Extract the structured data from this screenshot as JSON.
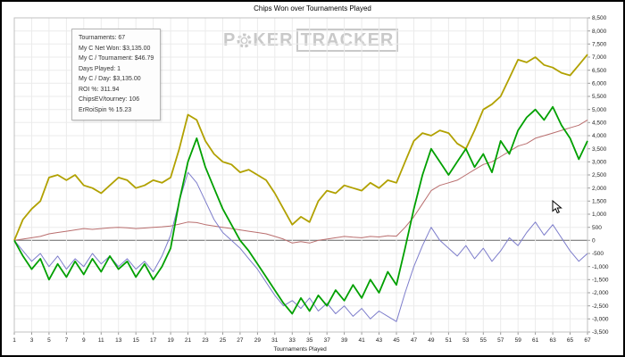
{
  "window": {
    "title": "Chips Won over Tournaments Played"
  },
  "watermark": {
    "p1": "P",
    "p2": "KER",
    "p3": "TRACKER",
    "chip_icon": "poker-chip-icon",
    "color": "#c9c9c9"
  },
  "stats_box": {
    "lines": [
      "Tournaments: 67",
      "My C Net Won: $3,135.00",
      "My C / Tournament: $46.79",
      "Days Played: 1",
      "My C / Day: $3,135.00",
      "ROI %: 311.94",
      "ChipsEV/tourney: 106",
      "ErRoiSpin % 15.23"
    ]
  },
  "chart_data": {
    "type": "line",
    "title": "Chips Won over Tournaments Played",
    "xlabel": "Tournaments Played",
    "ylabel": "",
    "grid": true,
    "legend_position": "none",
    "x_range": [
      1,
      67
    ],
    "x_tick_labels": [
      1,
      3,
      5,
      7,
      9,
      11,
      13,
      15,
      17,
      19,
      21,
      23,
      25,
      27,
      29,
      31,
      33,
      35,
      37,
      39,
      41,
      43,
      45,
      47,
      49,
      51,
      53,
      55,
      57,
      59,
      61,
      63,
      65,
      67
    ],
    "ylim": [
      -3500,
      8500
    ],
    "y_tick_step": 500,
    "zero_line_color": "#666666",
    "grid_color": "#ebebeb",
    "series": [
      {
        "name": "yellow-cumulative-chips",
        "color": "#b1a100",
        "width": 1.8,
        "values": [
          0,
          800,
          1200,
          1500,
          2400,
          2500,
          2300,
          2500,
          2100,
          2000,
          1800,
          2100,
          2400,
          2300,
          2000,
          2100,
          2300,
          2200,
          2400,
          3500,
          4800,
          4600,
          3800,
          3300,
          3000,
          2900,
          2600,
          2700,
          2500,
          2300,
          1800,
          1200,
          600,
          900,
          700,
          1500,
          1900,
          1800,
          2100,
          2000,
          1900,
          2200,
          2000,
          2300,
          2200,
          3000,
          3800,
          4100,
          4000,
          4200,
          4100,
          3700,
          3500,
          4200,
          5000,
          5200,
          5500,
          6200,
          6900,
          6800,
          7000,
          6700,
          6600,
          6400,
          6300,
          6700,
          7100
        ]
      },
      {
        "name": "red-trend",
        "color": "#b96e6e",
        "width": 1,
        "values": [
          0,
          50,
          100,
          150,
          250,
          300,
          350,
          400,
          450,
          420,
          450,
          480,
          500,
          480,
          450,
          470,
          500,
          520,
          550,
          620,
          700,
          680,
          600,
          550,
          500,
          450,
          400,
          350,
          300,
          250,
          150,
          50,
          -100,
          -50,
          -100,
          0,
          50,
          100,
          150,
          120,
          100,
          150,
          130,
          180,
          160,
          500,
          900,
          1400,
          1900,
          2100,
          2200,
          2300,
          2500,
          2700,
          2900,
          3000,
          3200,
          3400,
          3600,
          3700,
          3900,
          4000,
          4100,
          4200,
          4300,
          4400,
          4600
        ]
      },
      {
        "name": "blue-series",
        "color": "#7d7dcb",
        "width": 1,
        "values": [
          0,
          -400,
          -800,
          -500,
          -1000,
          -600,
          -1100,
          -700,
          -1000,
          -500,
          -900,
          -600,
          -1000,
          -700,
          -1100,
          -800,
          -1200,
          -600,
          200,
          1500,
          2600,
          2200,
          1500,
          800,
          300,
          0,
          -300,
          -700,
          -1100,
          -1600,
          -2100,
          -2500,
          -2300,
          -2600,
          -2200,
          -2700,
          -2400,
          -2800,
          -2500,
          -2900,
          -2600,
          -3000,
          -2700,
          -2900,
          -3100,
          -2000,
          -1000,
          -200,
          500,
          0,
          -300,
          -600,
          -200,
          -700,
          -300,
          -800,
          -400,
          100,
          -200,
          300,
          700,
          200,
          600,
          100,
          -400,
          -800,
          -500
        ]
      },
      {
        "name": "green-series",
        "color": "#00a000",
        "width": 1.8,
        "values": [
          0,
          -600,
          -1100,
          -700,
          -1500,
          -900,
          -1400,
          -800,
          -1300,
          -700,
          -1200,
          -600,
          -1100,
          -800,
          -1400,
          -900,
          -1500,
          -1000,
          -300,
          1500,
          3000,
          3900,
          2800,
          2000,
          1200,
          600,
          0,
          -400,
          -900,
          -1400,
          -1900,
          -2400,
          -2800,
          -2200,
          -2700,
          -2100,
          -2500,
          -1900,
          -2300,
          -1700,
          -2200,
          -1500,
          -2000,
          -1200,
          -1700,
          -300,
          1200,
          2500,
          3500,
          3000,
          2500,
          3000,
          3500,
          2800,
          3300,
          2600,
          3800,
          3300,
          4200,
          4700,
          5000,
          4600,
          5100,
          4400,
          3900,
          3100,
          3800
        ]
      }
    ]
  }
}
